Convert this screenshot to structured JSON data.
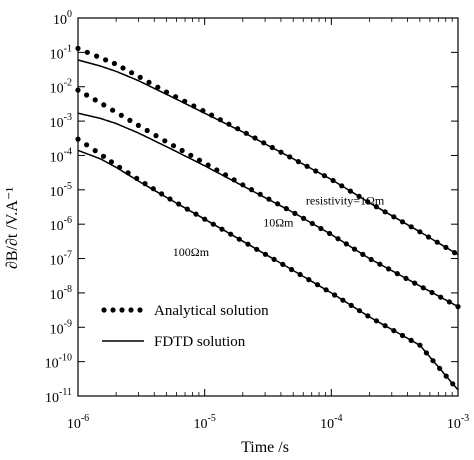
{
  "chart_data": {
    "type": "line",
    "title": "",
    "xlabel": "Time /s",
    "ylabel": "∂B/∂t /V.A⁻¹",
    "xscale": "log",
    "yscale": "log",
    "xlim": [
      1e-06,
      0.001
    ],
    "ylim": [
      1e-11,
      1
    ],
    "grid": false,
    "legend_placement": "bottom-left",
    "x_ticks": [
      {
        "value": 1e-06,
        "base": "10",
        "exp": "-6"
      },
      {
        "value": 1e-05,
        "base": "10",
        "exp": "-5"
      },
      {
        "value": 0.0001,
        "base": "10",
        "exp": "-4"
      },
      {
        "value": 0.001,
        "base": "10",
        "exp": "-3"
      }
    ],
    "y_ticks": [
      {
        "value": 1,
        "base": "10",
        "exp": "0"
      },
      {
        "value": 0.1,
        "base": "10",
        "exp": "-1"
      },
      {
        "value": 0.01,
        "base": "10",
        "exp": "-2"
      },
      {
        "value": 0.001,
        "base": "10",
        "exp": "-3"
      },
      {
        "value": 0.0001,
        "base": "10",
        "exp": "-4"
      },
      {
        "value": 1e-05,
        "base": "10",
        "exp": "-5"
      },
      {
        "value": 1e-06,
        "base": "10",
        "exp": "-6"
      },
      {
        "value": 1e-07,
        "base": "10",
        "exp": "-7"
      },
      {
        "value": 1e-08,
        "base": "10",
        "exp": "-8"
      },
      {
        "value": 1e-09,
        "base": "10",
        "exp": "-9"
      },
      {
        "value": 1e-10,
        "base": "10",
        "exp": "-10"
      },
      {
        "value": 1e-11,
        "base": "10",
        "exp": "-11"
      }
    ],
    "legend": [
      {
        "label": "Analytical solution",
        "style": "dots"
      },
      {
        "label": "FDTD solution",
        "style": "line"
      }
    ],
    "annotations": [
      {
        "text": "resistivity=1Ωm",
        "series": 0
      },
      {
        "text": "10Ωm",
        "series": 1
      },
      {
        "text": "100Ωm",
        "series": 2
      }
    ],
    "series": [
      {
        "style": "dots",
        "x": [
          1e-06,
          1.5e-06,
          2e-06,
          3e-06,
          5e-06,
          1e-05,
          2e-05,
          5e-05,
          0.0001,
          0.0002,
          0.0005,
          0.001
        ],
        "y": [
          0.13,
          0.07,
          0.045,
          0.02,
          0.007,
          0.0019,
          0.0005,
          8e-05,
          2e-05,
          4.2e-06,
          6e-07,
          1.3e-07
        ]
      },
      {
        "style": "line",
        "x": [
          1e-06,
          1.5e-06,
          2e-06,
          3e-06,
          5e-06,
          1e-05,
          2e-05,
          5e-05,
          0.0001,
          0.0002,
          0.0005,
          0.001
        ],
        "y": [
          0.06,
          0.04,
          0.028,
          0.015,
          0.006,
          0.0017,
          0.00048,
          8e-05,
          2e-05,
          4.2e-06,
          6e-07,
          1.3e-07
        ]
      },
      {
        "style": "dots",
        "x": [
          1e-06,
          1.5e-06,
          2e-06,
          3e-06,
          5e-06,
          1e-05,
          2e-05,
          5e-05,
          0.0001,
          0.0002,
          0.0005,
          0.001
        ],
        "y": [
          0.008,
          0.0034,
          0.0018,
          0.00075,
          0.00025,
          6e-05,
          1.4e-05,
          2.2e-06,
          5e-07,
          1e-07,
          1.6e-08,
          4e-09
        ]
      },
      {
        "style": "line",
        "x": [
          1e-06,
          1.5e-06,
          2e-06,
          3e-06,
          5e-06,
          1e-05,
          2e-05,
          5e-05,
          0.0001,
          0.0002,
          0.0005,
          0.001
        ],
        "y": [
          0.0017,
          0.0012,
          0.00085,
          0.00045,
          0.00018,
          5e-05,
          1.3e-05,
          2.2e-06,
          5e-07,
          1e-07,
          1.6e-08,
          4e-09
        ]
      },
      {
        "style": "dots",
        "x": [
          1e-06,
          1.5e-06,
          2e-06,
          3e-06,
          5e-06,
          1e-05,
          2e-05,
          5e-05,
          0.0001,
          0.0002,
          0.0005,
          0.001
        ],
        "y": [
          0.0003,
          0.00011,
          5.2e-05,
          2e-05,
          6.2e-06,
          1.4e-06,
          3.2e-07,
          4.5e-08,
          1e-08,
          2e-09,
          3e-10,
          1.5e-11
        ]
      },
      {
        "style": "line",
        "x": [
          1e-06,
          1.5e-06,
          2e-06,
          3e-06,
          5e-06,
          1e-05,
          2e-05,
          5e-05,
          0.0001,
          0.0002,
          0.0005,
          0.001
        ],
        "y": [
          0.00014,
          8e-05,
          4.5e-05,
          1.8e-05,
          6e-06,
          1.4e-06,
          3.2e-07,
          4.5e-08,
          1e-08,
          2e-09,
          3e-10,
          1.5e-11
        ]
      }
    ]
  }
}
